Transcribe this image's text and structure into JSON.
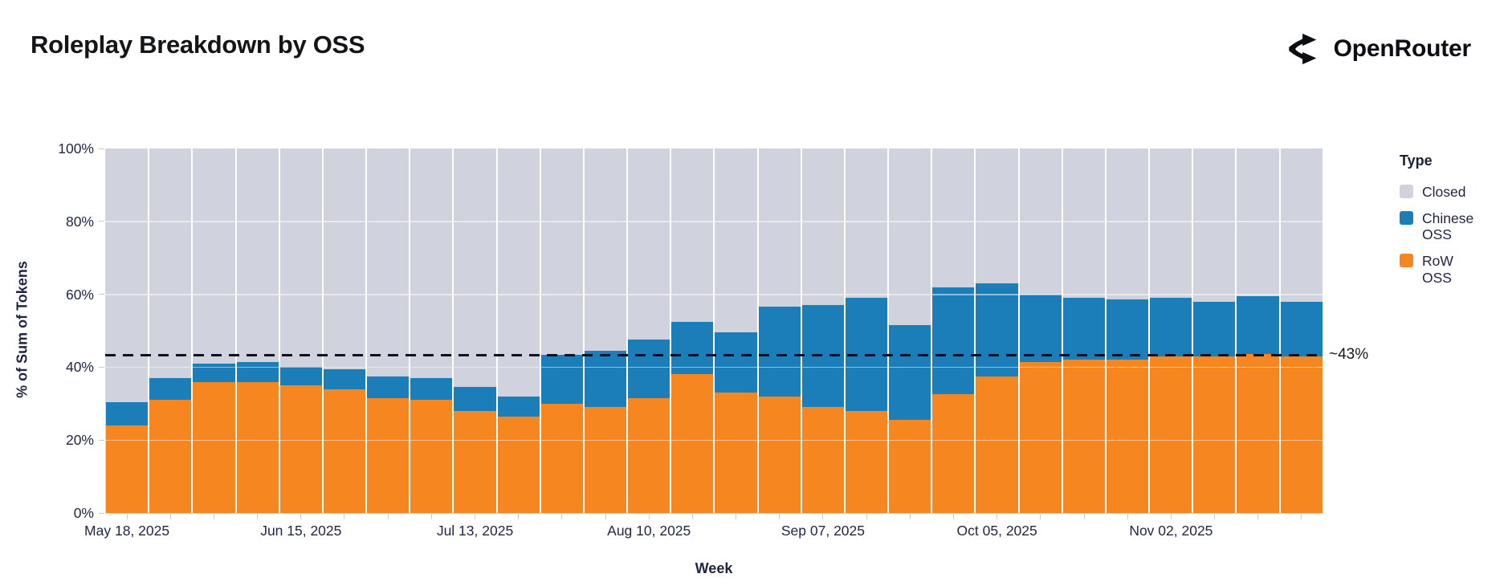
{
  "header": {
    "title": "Roleplay Breakdown by OSS",
    "brand": "OpenRouter"
  },
  "chart_data": {
    "type": "bar",
    "stacked": true,
    "title": "Roleplay Breakdown by OSS",
    "xlabel": "Week",
    "ylabel": "% of Sum of Tokens",
    "ylim": [
      0,
      100
    ],
    "grid": true,
    "y_ticks": [
      "0%",
      "20%",
      "40%",
      "60%",
      "80%",
      "100%"
    ],
    "x_tick_every": 4,
    "categories": [
      "May 18, 2025",
      "May 25, 2025",
      "Jun 01, 2025",
      "Jun 08, 2025",
      "Jun 15, 2025",
      "Jun 22, 2025",
      "Jun 29, 2025",
      "Jul 06, 2025",
      "Jul 13, 2025",
      "Jul 20, 2025",
      "Jul 27, 2025",
      "Aug 03, 2025",
      "Aug 10, 2025",
      "Aug 17, 2025",
      "Aug 24, 2025",
      "Aug 31, 2025",
      "Sep 07, 2025",
      "Sep 14, 2025",
      "Sep 21, 2025",
      "Sep 28, 2025",
      "Oct 05, 2025",
      "Oct 12, 2025",
      "Oct 19, 2025",
      "Oct 26, 2025",
      "Nov 02, 2025",
      "Nov 09, 2025",
      "Nov 16, 2025",
      "Nov 23, 2025"
    ],
    "visible_x_tick_labels": [
      "May 18, 2025",
      "Jun 15, 2025",
      "Jul 13, 2025",
      "Aug 10, 2025",
      "Sep 07, 2025",
      "Oct 05, 2025",
      "Nov 02, 2025"
    ],
    "series": [
      {
        "name": "RoW OSS",
        "color": "#F6861F",
        "values": [
          24,
          31,
          36,
          36,
          35,
          34,
          31.5,
          31,
          28,
          26.5,
          30,
          29,
          31.5,
          38,
          33,
          32,
          29,
          28,
          25.5,
          32.5,
          37.5,
          41.5,
          42,
          42,
          43,
          43,
          43.5,
          43
        ]
      },
      {
        "name": "Chinese OSS",
        "color": "#1B7EB8",
        "values": [
          6.5,
          6,
          5,
          5.5,
          5,
          5.5,
          6,
          6,
          6.5,
          5.5,
          13.5,
          15.5,
          16,
          14.5,
          16.5,
          24.5,
          28,
          31,
          26,
          29.5,
          25.5,
          18.5,
          17,
          16.5,
          16,
          15,
          16,
          15
        ]
      },
      {
        "name": "Closed",
        "color": "#D0D3DD",
        "values": [
          69.5,
          63,
          59,
          58.5,
          60,
          60.5,
          62.5,
          63,
          65.5,
          68,
          56.5,
          55.5,
          52.5,
          47.5,
          50.5,
          43.5,
          43,
          41,
          48.5,
          38,
          37,
          40,
          41,
          41.5,
          41,
          42,
          40.5,
          42
        ]
      }
    ],
    "annotation": {
      "label": "~43%",
      "value": 43.3,
      "style": "dashed",
      "color": "#0d1020"
    },
    "legend": {
      "title": "Type",
      "position": "right",
      "entries": [
        {
          "label": "Closed",
          "color": "#D0D3DD"
        },
        {
          "label": "Chinese OSS",
          "color": "#1B7EB8"
        },
        {
          "label": "RoW OSS",
          "color": "#F6861F"
        }
      ]
    }
  }
}
